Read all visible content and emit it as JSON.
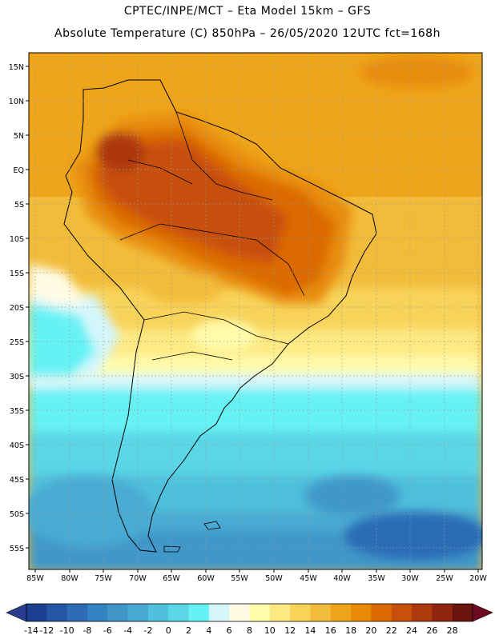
{
  "header": {
    "line1": "CPTEC/INPE/MCT –  Eta Model 15km – GFS",
    "line2": "Absolute Temperature (C) 850hPa – 26/05/2020 12UTC fct=168h"
  },
  "map": {
    "lat_labels": [
      "15N",
      "10N",
      "5N",
      "EQ",
      "5S",
      "10S",
      "15S",
      "20S",
      "25S",
      "30S",
      "35S",
      "40S",
      "45S",
      "50S",
      "55S"
    ],
    "lon_labels": [
      "85W",
      "80W",
      "75W",
      "70W",
      "65W",
      "60W",
      "55W",
      "50W",
      "45W",
      "40W",
      "35W",
      "30W",
      "25W",
      "20W"
    ]
  },
  "colorbar": {
    "labels": [
      "-14",
      "-12",
      "-10",
      "-8",
      "-6",
      "-4",
      "-2",
      "0",
      "2",
      "4",
      "6",
      "8",
      "10",
      "12",
      "14",
      "16",
      "18",
      "20",
      "22",
      "24",
      "26",
      "28"
    ],
    "colors": [
      "#1d3f8f",
      "#2456a6",
      "#2b6cb5",
      "#3582c0",
      "#3f97c9",
      "#48aad2",
      "#50c0dc",
      "#5ad6e6",
      "#66f2f4",
      "#d4f6fb",
      "#fffbe5",
      "#fffbaa",
      "#fde982",
      "#f8d35a",
      "#f2bc3a",
      "#eea51a",
      "#e88c08",
      "#db6a05",
      "#c7500a",
      "#ad390e",
      "#8f2410",
      "#6b140e"
    ],
    "under_color": "#2a3d8f",
    "over_color": "#6b0a20"
  }
}
